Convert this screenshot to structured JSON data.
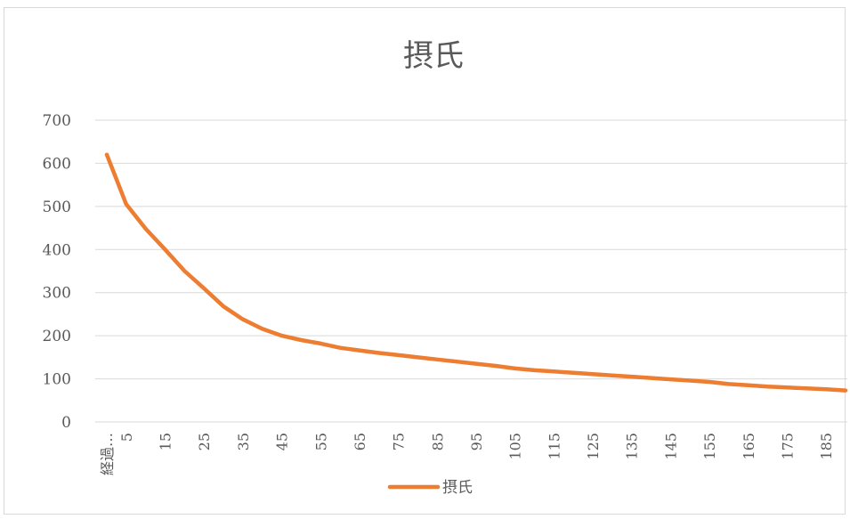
{
  "chart_data": {
    "type": "line",
    "title": "摂氏",
    "ylim": [
      0,
      700
    ],
    "yticks": [
      0,
      100,
      200,
      300,
      400,
      500,
      600,
      700
    ],
    "x_tick_labels": [
      "経過…",
      "5",
      "15",
      "25",
      "35",
      "45",
      "55",
      "65",
      "75",
      "85",
      "95",
      "105",
      "115",
      "125",
      "135",
      "145",
      "155",
      "165",
      "175",
      "185"
    ],
    "grid": true,
    "legend": "bottom",
    "series": [
      {
        "name": "摂氏",
        "color": "#ED7D31",
        "x": [
          0,
          5,
          10,
          15,
          20,
          25,
          30,
          35,
          40,
          45,
          50,
          55,
          60,
          65,
          70,
          75,
          80,
          85,
          90,
          95,
          100,
          105,
          110,
          115,
          120,
          125,
          130,
          135,
          140,
          145,
          150,
          155,
          160,
          165,
          170,
          175,
          180,
          185,
          190
        ],
        "values": [
          620,
          505,
          448,
          400,
          350,
          310,
          268,
          238,
          216,
          200,
          190,
          182,
          172,
          166,
          160,
          155,
          150,
          145,
          140,
          135,
          130,
          124,
          120,
          117,
          114,
          111,
          108,
          105,
          102,
          99,
          96,
          93,
          88,
          85,
          82,
          80,
          78,
          76,
          73
        ]
      }
    ]
  }
}
